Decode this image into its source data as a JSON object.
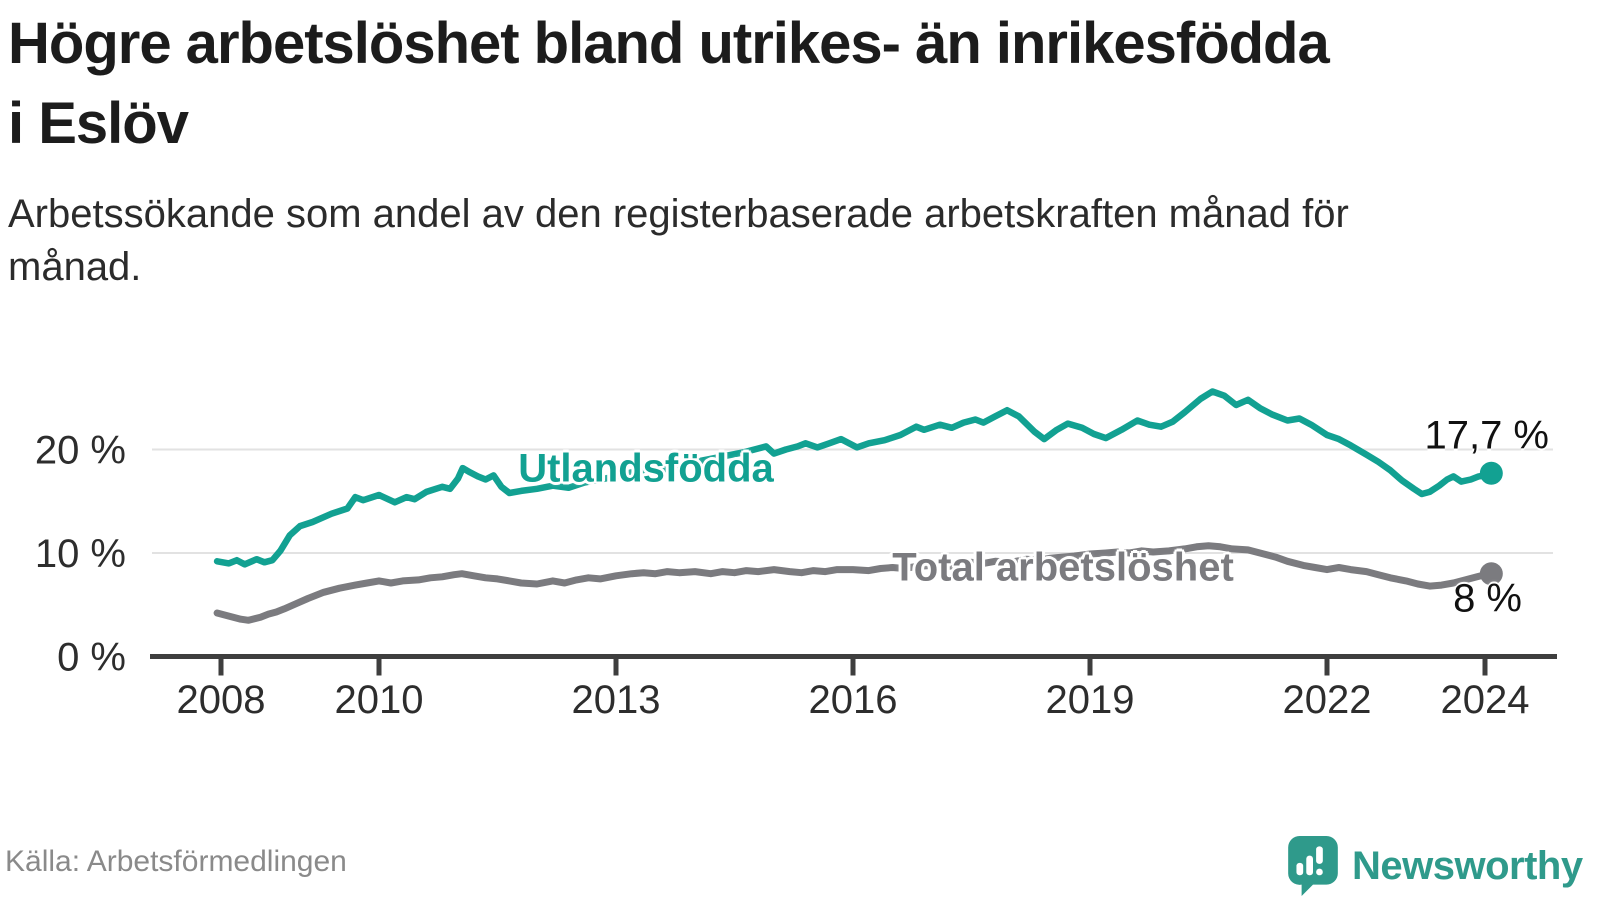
{
  "title": "Högre arbetslöshet bland utrikes- än inrikesfödda i Eslöv",
  "subtitle": "Arbetssökande som andel av den registerbaserade arbetskraften månad för månad.",
  "source": "Källa: Arbetsförmedlingen",
  "branding": {
    "wordmark": "Newsworthy",
    "icon": "newsworthy-speech-bubble-bar-chart-icon"
  },
  "colors": {
    "teal": "#12A192",
    "gray": "#7B7B7F",
    "title": "#1c1c1c",
    "subtitle": "#2b2b2b",
    "axis": "#3E3E3E",
    "ticklabel": "#2d2d2d",
    "grid": "#E2E2E2",
    "source": "#8A8A8A",
    "brand": "#2F9A8B"
  },
  "chart_data": {
    "type": "line",
    "title": "Högre arbetslöshet bland utrikes- än inrikesfödda i Eslöv",
    "subtitle": "Arbetssökande som andel av den registerbaserade arbetskraften månad för månad.",
    "unit": "%",
    "x_axis": {
      "range": [
        2007.9,
        2024.9
      ],
      "ticks": [
        {
          "year": 2008,
          "label": "2008"
        },
        {
          "year": 2010,
          "label": "2010"
        },
        {
          "year": 2013,
          "label": "2013"
        },
        {
          "year": 2016,
          "label": "2016"
        },
        {
          "year": 2019,
          "label": "2019"
        },
        {
          "year": 2022,
          "label": "2022"
        },
        {
          "year": 2024,
          "label": "2024"
        }
      ]
    },
    "y_axis": {
      "range": [
        0,
        29
      ],
      "grid": true,
      "ticks": [
        {
          "value": 0,
          "label": "0 %"
        },
        {
          "value": 10,
          "label": "10 %"
        },
        {
          "value": 20,
          "label": "20 %"
        }
      ]
    },
    "series": [
      {
        "name": "Utlandsfödda",
        "color": "#12A192",
        "line_width": 6.5,
        "end_value": 17.7,
        "end_label": "17,7 %",
        "points": [
          [
            2007.95,
            9.2
          ],
          [
            2008.1,
            9.0
          ],
          [
            2008.2,
            9.3
          ],
          [
            2008.3,
            8.9
          ],
          [
            2008.45,
            9.4
          ],
          [
            2008.55,
            9.1
          ],
          [
            2008.65,
            9.3
          ],
          [
            2008.75,
            10.2
          ],
          [
            2008.87,
            11.7
          ],
          [
            2009.0,
            12.6
          ],
          [
            2009.16,
            13.0
          ],
          [
            2009.4,
            13.8
          ],
          [
            2009.6,
            14.3
          ],
          [
            2009.7,
            15.4
          ],
          [
            2009.8,
            15.1
          ],
          [
            2010.0,
            15.6
          ],
          [
            2010.2,
            14.9
          ],
          [
            2010.35,
            15.4
          ],
          [
            2010.45,
            15.2
          ],
          [
            2010.6,
            15.9
          ],
          [
            2010.8,
            16.4
          ],
          [
            2010.9,
            16.2
          ],
          [
            2011.0,
            17.2
          ],
          [
            2011.06,
            18.2
          ],
          [
            2011.15,
            17.8
          ],
          [
            2011.25,
            17.4
          ],
          [
            2011.35,
            17.1
          ],
          [
            2011.45,
            17.5
          ],
          [
            2011.55,
            16.4
          ],
          [
            2011.65,
            15.8
          ],
          [
            2011.8,
            16.0
          ],
          [
            2012.0,
            16.2
          ],
          [
            2012.2,
            16.5
          ],
          [
            2012.4,
            16.3
          ],
          [
            2012.6,
            16.8
          ],
          [
            2012.8,
            17.1
          ],
          [
            2013.0,
            17.4
          ],
          [
            2013.2,
            17.8
          ],
          [
            2013.4,
            18.1
          ],
          [
            2013.6,
            18.0
          ],
          [
            2013.8,
            18.4
          ],
          [
            2014.0,
            18.8
          ],
          [
            2014.2,
            19.1
          ],
          [
            2014.4,
            19.4
          ],
          [
            2014.6,
            19.7
          ],
          [
            2014.8,
            20.1
          ],
          [
            2014.9,
            20.3
          ],
          [
            2015.0,
            19.6
          ],
          [
            2015.15,
            20.0
          ],
          [
            2015.3,
            20.3
          ],
          [
            2015.4,
            20.6
          ],
          [
            2015.55,
            20.2
          ],
          [
            2015.7,
            20.6
          ],
          [
            2015.85,
            21.0
          ],
          [
            2016.05,
            20.2
          ],
          [
            2016.2,
            20.6
          ],
          [
            2016.4,
            20.9
          ],
          [
            2016.6,
            21.4
          ],
          [
            2016.8,
            22.2
          ],
          [
            2016.9,
            21.9
          ],
          [
            2017.1,
            22.4
          ],
          [
            2017.25,
            22.1
          ],
          [
            2017.4,
            22.6
          ],
          [
            2017.55,
            22.9
          ],
          [
            2017.65,
            22.6
          ],
          [
            2017.8,
            23.2
          ],
          [
            2017.95,
            23.8
          ],
          [
            2018.1,
            23.2
          ],
          [
            2018.3,
            21.7
          ],
          [
            2018.42,
            21.0
          ],
          [
            2018.58,
            21.9
          ],
          [
            2018.72,
            22.5
          ],
          [
            2018.9,
            22.1
          ],
          [
            2019.05,
            21.5
          ],
          [
            2019.2,
            21.1
          ],
          [
            2019.4,
            21.9
          ],
          [
            2019.6,
            22.8
          ],
          [
            2019.75,
            22.4
          ],
          [
            2019.9,
            22.2
          ],
          [
            2020.05,
            22.7
          ],
          [
            2020.2,
            23.6
          ],
          [
            2020.4,
            24.9
          ],
          [
            2020.55,
            25.6
          ],
          [
            2020.7,
            25.2
          ],
          [
            2020.85,
            24.3
          ],
          [
            2021.0,
            24.8
          ],
          [
            2021.15,
            24.0
          ],
          [
            2021.3,
            23.4
          ],
          [
            2021.5,
            22.8
          ],
          [
            2021.65,
            23.0
          ],
          [
            2021.8,
            22.4
          ],
          [
            2022.0,
            21.4
          ],
          [
            2022.15,
            21.0
          ],
          [
            2022.3,
            20.4
          ],
          [
            2022.5,
            19.5
          ],
          [
            2022.65,
            18.8
          ],
          [
            2022.8,
            18.0
          ],
          [
            2022.95,
            17.0
          ],
          [
            2023.1,
            16.2
          ],
          [
            2023.2,
            15.7
          ],
          [
            2023.3,
            15.9
          ],
          [
            2023.42,
            16.5
          ],
          [
            2023.52,
            17.1
          ],
          [
            2023.6,
            17.4
          ],
          [
            2023.7,
            16.9
          ],
          [
            2023.82,
            17.1
          ],
          [
            2023.92,
            17.4
          ],
          [
            2024.0,
            17.5
          ],
          [
            2024.08,
            17.7
          ]
        ]
      },
      {
        "name": "Total arbetslöshet",
        "color": "#7B7B7F",
        "line_width": 7,
        "end_value": 8.0,
        "end_label": "8 %",
        "points": [
          [
            2007.95,
            4.2
          ],
          [
            2008.1,
            3.9
          ],
          [
            2008.25,
            3.6
          ],
          [
            2008.35,
            3.5
          ],
          [
            2008.5,
            3.8
          ],
          [
            2008.6,
            4.1
          ],
          [
            2008.7,
            4.3
          ],
          [
            2008.8,
            4.6
          ],
          [
            2008.95,
            5.1
          ],
          [
            2009.1,
            5.6
          ],
          [
            2009.3,
            6.2
          ],
          [
            2009.5,
            6.6
          ],
          [
            2009.7,
            6.9
          ],
          [
            2009.85,
            7.1
          ],
          [
            2010.0,
            7.3
          ],
          [
            2010.15,
            7.1
          ],
          [
            2010.3,
            7.3
          ],
          [
            2010.5,
            7.4
          ],
          [
            2010.65,
            7.6
          ],
          [
            2010.8,
            7.7
          ],
          [
            2010.95,
            7.9
          ],
          [
            2011.05,
            8.0
          ],
          [
            2011.2,
            7.8
          ],
          [
            2011.35,
            7.6
          ],
          [
            2011.5,
            7.5
          ],
          [
            2011.65,
            7.3
          ],
          [
            2011.8,
            7.1
          ],
          [
            2012.0,
            7.0
          ],
          [
            2012.2,
            7.3
          ],
          [
            2012.35,
            7.1
          ],
          [
            2012.5,
            7.4
          ],
          [
            2012.65,
            7.6
          ],
          [
            2012.8,
            7.5
          ],
          [
            2013.0,
            7.8
          ],
          [
            2013.2,
            8.0
          ],
          [
            2013.35,
            8.1
          ],
          [
            2013.5,
            8.0
          ],
          [
            2013.65,
            8.2
          ],
          [
            2013.8,
            8.1
          ],
          [
            2014.0,
            8.2
          ],
          [
            2014.2,
            8.0
          ],
          [
            2014.35,
            8.2
          ],
          [
            2014.5,
            8.1
          ],
          [
            2014.65,
            8.3
          ],
          [
            2014.8,
            8.2
          ],
          [
            2015.0,
            8.4
          ],
          [
            2015.2,
            8.2
          ],
          [
            2015.35,
            8.1
          ],
          [
            2015.5,
            8.3
          ],
          [
            2015.65,
            8.2
          ],
          [
            2015.8,
            8.4
          ],
          [
            2016.0,
            8.4
          ],
          [
            2016.2,
            8.3
          ],
          [
            2016.35,
            8.5
          ],
          [
            2016.5,
            8.6
          ],
          [
            2016.65,
            8.5
          ],
          [
            2016.8,
            8.7
          ],
          [
            2017.0,
            8.8
          ],
          [
            2017.2,
            8.7
          ],
          [
            2017.35,
            8.9
          ],
          [
            2017.5,
            9.1
          ],
          [
            2017.65,
            9.0
          ],
          [
            2017.8,
            9.2
          ],
          [
            2018.0,
            9.1
          ],
          [
            2018.2,
            9.4
          ],
          [
            2018.35,
            9.3
          ],
          [
            2018.5,
            9.5
          ],
          [
            2018.65,
            9.6
          ],
          [
            2018.8,
            9.7
          ],
          [
            2019.0,
            9.9
          ],
          [
            2019.2,
            10.0
          ],
          [
            2019.35,
            10.1
          ],
          [
            2019.5,
            10.0
          ],
          [
            2019.65,
            10.2
          ],
          [
            2019.8,
            10.1
          ],
          [
            2020.0,
            10.2
          ],
          [
            2020.2,
            10.4
          ],
          [
            2020.35,
            10.6
          ],
          [
            2020.5,
            10.7
          ],
          [
            2020.65,
            10.6
          ],
          [
            2020.8,
            10.4
          ],
          [
            2021.0,
            10.3
          ],
          [
            2021.2,
            9.9
          ],
          [
            2021.35,
            9.6
          ],
          [
            2021.5,
            9.2
          ],
          [
            2021.7,
            8.8
          ],
          [
            2021.85,
            8.6
          ],
          [
            2022.0,
            8.4
          ],
          [
            2022.15,
            8.6
          ],
          [
            2022.3,
            8.4
          ],
          [
            2022.5,
            8.2
          ],
          [
            2022.65,
            7.9
          ],
          [
            2022.8,
            7.6
          ],
          [
            2023.0,
            7.3
          ],
          [
            2023.15,
            7.0
          ],
          [
            2023.3,
            6.8
          ],
          [
            2023.45,
            6.9
          ],
          [
            2023.6,
            7.1
          ],
          [
            2023.75,
            7.4
          ],
          [
            2023.9,
            7.7
          ],
          [
            2024.0,
            7.9
          ],
          [
            2024.08,
            8.0
          ]
        ]
      }
    ],
    "legend_position": "inline-labels",
    "end_dots": true
  }
}
